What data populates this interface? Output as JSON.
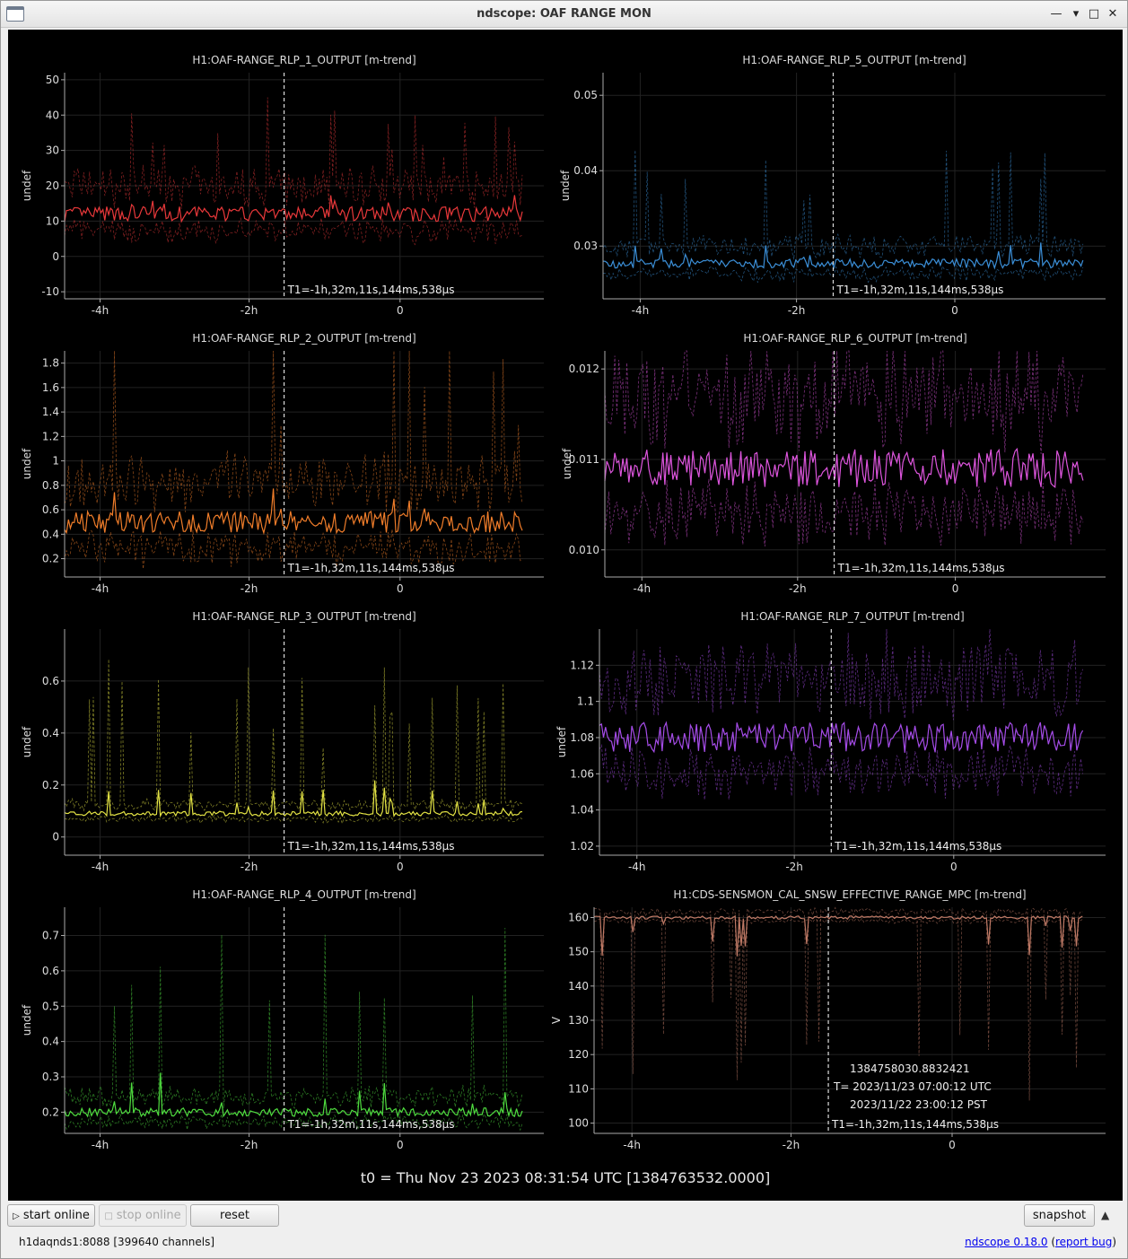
{
  "window": {
    "title": "ndscope: OAF RANGE MON"
  },
  "t0_text": "t0 = Thu Nov 23 2023 08:31:54 UTC [1384763532.0000]",
  "buttons": {
    "start_online": "start online",
    "stop_online": "stop online",
    "reset": "reset",
    "snapshot": "snapshot"
  },
  "status": {
    "server": "h1daqnds1:8088  [399640 channels]",
    "version_link": "ndscope 0.18.0",
    "report_pre": " (",
    "report_link": "report bug",
    "report_post": ")"
  },
  "cursor_label": "T1=-1h,32m,11s,144ms,538µs",
  "x_ticks": [
    "-4h",
    "-2h",
    "0"
  ],
  "crosshair": {
    "gps": "1384758030.8832421",
    "utc": "T= 2023/11/23 07:00:12 UTC",
    "pst": "2023/11/22 23:00:12 PST"
  },
  "plots": [
    {
      "title": "H1:OAF-RANGE_RLP_1_OUTPUT [m-trend]",
      "ylabel": "undef",
      "color": "#e8383a",
      "yticks": [
        "50",
        "40",
        "30",
        "20",
        "10",
        "0",
        "-10"
      ],
      "ylim": [
        -12,
        52
      ],
      "mean": 12,
      "band": 7,
      "spike": 14
    },
    {
      "title": "H1:OAF-RANGE_RLP_5_OUTPUT [m-trend]",
      "ylabel": "undef",
      "color": "#3b8fd8",
      "yticks": [
        "0.05",
        "0.04",
        "0.03"
      ],
      "ylim": [
        0.023,
        0.053
      ],
      "mean": 0.0277,
      "band": 0.002,
      "spike": 0.008
    },
    {
      "title": "H1:OAF-RANGE_RLP_2_OUTPUT [m-trend]",
      "ylabel": "undef",
      "color": "#f07d2a",
      "yticks": [
        "1.8",
        "1.6",
        "1.4",
        "1.2",
        "1",
        "0.8",
        "0.6",
        "0.4",
        "0.2"
      ],
      "ylim": [
        0.05,
        1.9
      ],
      "mean": 0.5,
      "band": 0.3,
      "spike": 0.7
    },
    {
      "title": "H1:OAF-RANGE_RLP_6_OUTPUT [m-trend]",
      "ylabel": "undef",
      "color": "#dd55dd",
      "yticks": [
        "0.012",
        "0.011",
        "0.010"
      ],
      "ylim": [
        0.0097,
        0.0122
      ],
      "mean": 0.0109,
      "band": 0.0007,
      "spike": 0.0005
    },
    {
      "title": "H1:OAF-RANGE_RLP_3_OUTPUT [m-trend]",
      "ylabel": "undef",
      "color": "#e3e344",
      "yticks": [
        "0.6",
        "0.4",
        "0.2",
        "0"
      ],
      "ylim": [
        -0.07,
        0.8
      ],
      "mean": 0.09,
      "band": 0.03,
      "spike": 0.35
    },
    {
      "title": "H1:OAF-RANGE_RLP_7_OUTPUT [m-trend]",
      "ylabel": "undef",
      "color": "#a54ce8",
      "yticks": [
        "1.12",
        "1.1",
        "1.08",
        "1.06",
        "1.04",
        "1.02"
      ],
      "ylim": [
        1.015,
        1.14
      ],
      "mean": 1.08,
      "band": 0.028,
      "spike": 0.01
    },
    {
      "title": "H1:OAF-RANGE_RLP_4_OUTPUT [m-trend]",
      "ylabel": "undef",
      "color": "#4fdd3f",
      "yticks": [
        "0.7",
        "0.6",
        "0.5",
        "0.4",
        "0.3",
        "0.2"
      ],
      "ylim": [
        0.14,
        0.78
      ],
      "mean": 0.2,
      "band": 0.04,
      "spike": 0.3
    },
    {
      "title": "H1:CDS-SENSMON_CAL_SNSW_EFFECTIVE_RANGE_MPC [m-trend]",
      "ylabel": "V",
      "color": "#c07a66",
      "yticks": [
        "160",
        "150",
        "140",
        "130",
        "120",
        "110",
        "100"
      ],
      "ylim": [
        97,
        163
      ],
      "mean": 160,
      "band": 1.5,
      "spike": -35
    }
  ]
}
